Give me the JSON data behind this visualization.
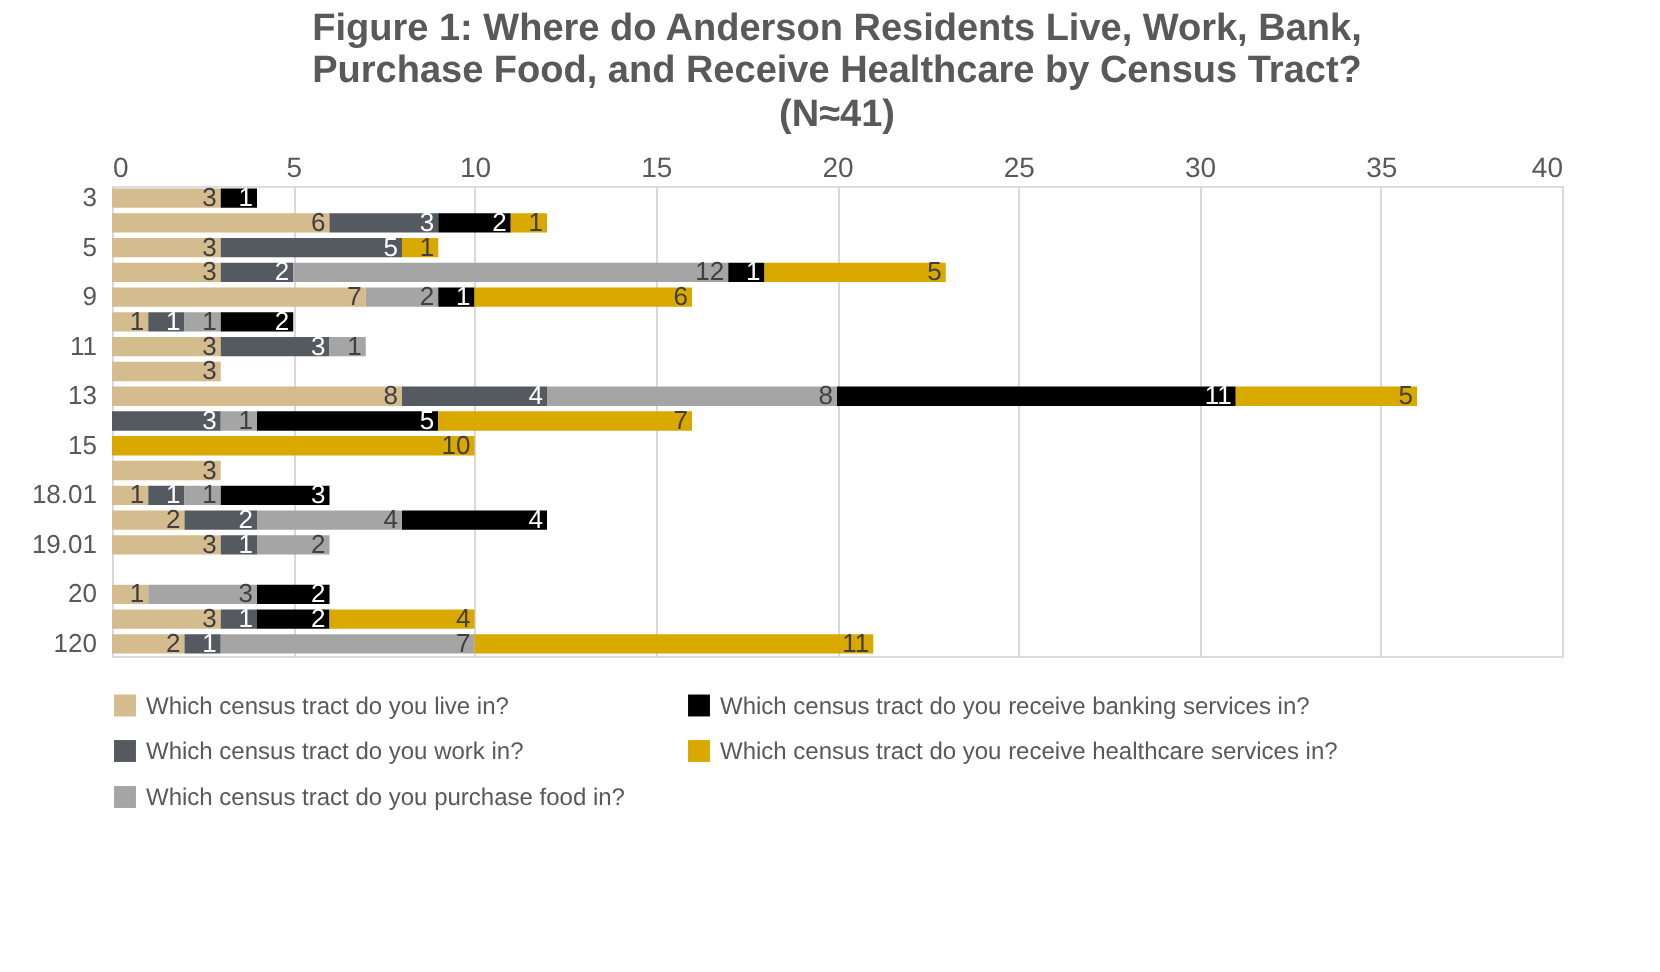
{
  "chart_data": {
    "type": "bar",
    "orientation": "horizontal",
    "stacked": true,
    "title": "Figure 1: Where do Anderson Residents Live, Work, Bank, Purchase Food, and Receive Healthcare by Census Tract?",
    "subtitle": "(N≈41)",
    "categories": [
      "3",
      null,
      "5",
      null,
      "9",
      null,
      "11",
      null,
      "13",
      null,
      "15",
      null,
      "18.01",
      null,
      "19.01",
      null,
      "20",
      null,
      "120"
    ],
    "series": [
      {
        "name": "Which census tract do you live in?",
        "color": "#d4bc8f",
        "values": [
          3,
          6,
          3,
          3,
          7,
          1,
          3,
          3,
          8,
          null,
          null,
          3,
          1,
          2,
          3,
          null,
          1,
          3,
          2
        ]
      },
      {
        "name": "Which census tract do you work in?",
        "color": "#555a60",
        "values": [
          null,
          3,
          5,
          2,
          null,
          1,
          3,
          null,
          4,
          3,
          null,
          null,
          1,
          2,
          1,
          null,
          null,
          1,
          1
        ]
      },
      {
        "name": "Which census tract do you purchase food in?",
        "color": "#a5a5a5",
        "values": [
          null,
          null,
          null,
          12,
          2,
          1,
          1,
          null,
          8,
          1,
          null,
          null,
          1,
          4,
          2,
          null,
          3,
          null,
          7
        ]
      },
      {
        "name": "Which census tract do you receive banking services in?",
        "color": "#000000",
        "values": [
          1,
          2,
          null,
          1,
          1,
          2,
          null,
          null,
          11,
          5,
          null,
          null,
          3,
          4,
          null,
          null,
          2,
          2,
          null
        ]
      },
      {
        "name": "Which census tract do you receive healthcare services in?",
        "color": "#daa900",
        "values": [
          null,
          1,
          1,
          5,
          6,
          null,
          null,
          null,
          5,
          7,
          10,
          null,
          null,
          null,
          null,
          null,
          null,
          4,
          11
        ]
      }
    ],
    "xlim": [
      0,
      40
    ],
    "xticks": [
      0,
      5,
      10,
      15,
      20,
      25,
      30,
      35,
      40
    ],
    "grid": "x",
    "legend": "bottom",
    "data_labels": true
  }
}
